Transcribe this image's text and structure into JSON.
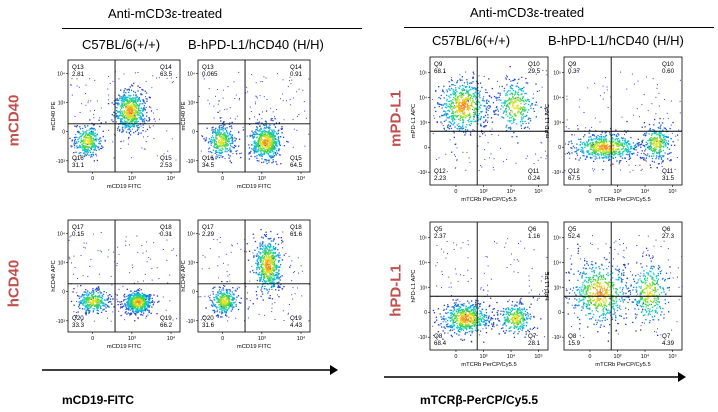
{
  "left_panel": {
    "treatment": "Anti-mCD3ε-treated",
    "col1": "C57BL/6(+/+)",
    "col2": "B-hPD-L1/hCD40 (H/H)",
    "row1_label": "mCD40",
    "row2_label": "hCD40",
    "x_title": "mCD19-FITC"
  },
  "right_panel": {
    "treatment": "Anti-mCD3ε-treated",
    "col1": "C57BL/6(+/+)",
    "col2": "B-hPD-L1/hCD40 (H/H)",
    "row1_label": "mPD-L1",
    "row2_label": "hPD-L1",
    "x_title": "mTCRβ-PerCP/Cy5.5"
  },
  "chart_data": [
    {
      "type": "scatter",
      "panel": "left",
      "row": "mCD40",
      "genotype": "C57BL/6(+/+)",
      "xlabel": "mCD19 FITC",
      "ylabel": "mCD40 PE",
      "quadrants": [
        {
          "name": "Q13",
          "value": "2.81"
        },
        {
          "name": "Q14",
          "value": "63.5"
        },
        {
          "name": "Q16",
          "value": "31.1"
        },
        {
          "name": "Q15",
          "value": "2.53"
        }
      ],
      "x_ticks": [
        "0",
        "10³",
        "10⁴"
      ],
      "y_ticks": [
        "10⁴",
        "10³",
        "0",
        "-10³"
      ],
      "populations": [
        {
          "x": 0.17,
          "y": 0.28,
          "sx": 0.06,
          "sy": 0.07,
          "w": 0.35
        },
        {
          "x": 0.55,
          "y": 0.55,
          "sx": 0.07,
          "sy": 0.09,
          "w": 0.65
        }
      ]
    },
    {
      "type": "scatter",
      "panel": "left",
      "row": "mCD40",
      "genotype": "B-hPD-L1/hCD40 (H/H)",
      "xlabel": "mCD19 FITC",
      "ylabel": "mCD40 PE",
      "quadrants": [
        {
          "name": "Q13",
          "value": "0.065"
        },
        {
          "name": "Q14",
          "value": "0.91"
        },
        {
          "name": "Q16",
          "value": "34.5"
        },
        {
          "name": "Q15",
          "value": "64.5"
        }
      ],
      "x_ticks": [
        "0",
        "10³",
        "10⁴"
      ],
      "y_ticks": [
        "10⁴",
        "10³",
        "0",
        "-10³"
      ],
      "populations": [
        {
          "x": 0.2,
          "y": 0.28,
          "sx": 0.06,
          "sy": 0.07,
          "w": 0.35
        },
        {
          "x": 0.6,
          "y": 0.27,
          "sx": 0.07,
          "sy": 0.08,
          "w": 0.65
        }
      ]
    },
    {
      "type": "scatter",
      "panel": "left",
      "row": "hCD40",
      "genotype": "C57BL/6(+/+)",
      "xlabel": "mCD19 FITC",
      "ylabel": "hCD40 APC",
      "quadrants": [
        {
          "name": "Q17",
          "value": "0.15"
        },
        {
          "name": "Q18",
          "value": "0.31"
        },
        {
          "name": "Q20",
          "value": "33.3"
        },
        {
          "name": "Q19",
          "value": "66.2"
        }
      ],
      "x_ticks": [
        "0",
        "10³",
        "10⁴"
      ],
      "y_ticks": [
        "10⁴",
        "10³",
        "0",
        "-10³"
      ],
      "populations": [
        {
          "x": 0.22,
          "y": 0.28,
          "sx": 0.07,
          "sy": 0.05,
          "w": 0.35
        },
        {
          "x": 0.62,
          "y": 0.27,
          "sx": 0.06,
          "sy": 0.05,
          "w": 0.65
        }
      ]
    },
    {
      "type": "scatter",
      "panel": "left",
      "row": "hCD40",
      "genotype": "B-hPD-L1/hCD40 (H/H)",
      "xlabel": "mCD19 FITC",
      "ylabel": "hCD40 APC",
      "quadrants": [
        {
          "name": "Q17",
          "value": "2.29"
        },
        {
          "name": "Q18",
          "value": "61.6"
        },
        {
          "name": "Q20",
          "value": "31.6"
        },
        {
          "name": "Q19",
          "value": "4.43"
        }
      ],
      "x_ticks": [
        "0",
        "10³",
        "10⁴"
      ],
      "y_ticks": [
        "10⁴",
        "10³",
        "0",
        "-10³"
      ],
      "populations": [
        {
          "x": 0.23,
          "y": 0.28,
          "sx": 0.06,
          "sy": 0.06,
          "w": 0.35
        },
        {
          "x": 0.62,
          "y": 0.6,
          "sx": 0.06,
          "sy": 0.12,
          "w": 0.65
        }
      ]
    },
    {
      "type": "scatter",
      "panel": "right",
      "row": "mPD-L1",
      "genotype": "C57BL/6(+/+)",
      "xlabel": "mTCRb PerCP/Cy5.5",
      "ylabel": "mPD-L1 APC",
      "quadrants": [
        {
          "name": "Q9",
          "value": "68.1"
        },
        {
          "name": "Q10",
          "value": "29.5"
        },
        {
          "name": "Q12",
          "value": "2.23"
        },
        {
          "name": "Q11",
          "value": "0.24"
        }
      ],
      "x_ticks": [
        "0",
        "10³",
        "10⁴",
        "10⁵"
      ],
      "y_ticks": [
        "10⁵",
        "10⁴",
        "10³",
        "0",
        "-10³"
      ],
      "populations": [
        {
          "x": 0.28,
          "y": 0.62,
          "sx": 0.1,
          "sy": 0.1,
          "w": 0.68
        },
        {
          "x": 0.72,
          "y": 0.62,
          "sx": 0.08,
          "sy": 0.1,
          "w": 0.32
        }
      ]
    },
    {
      "type": "scatter",
      "panel": "right",
      "row": "mPD-L1",
      "genotype": "B-hPD-L1/hCD40 (H/H)",
      "xlabel": "mTCRb PerCP/Cy5.5",
      "ylabel": "mPD-L1 APC",
      "quadrants": [
        {
          "name": "Q9",
          "value": "0.37"
        },
        {
          "name": "Q10",
          "value": "0.60"
        },
        {
          "name": "Q12",
          "value": "67.5"
        },
        {
          "name": "Q11",
          "value": "31.5"
        }
      ],
      "x_ticks": [
        "0",
        "10³",
        "10⁴",
        "10⁵"
      ],
      "y_ticks": [
        "10⁵",
        "10⁴",
        "10³",
        "0",
        "-10³"
      ],
      "populations": [
        {
          "x": 0.35,
          "y": 0.3,
          "sx": 0.14,
          "sy": 0.05,
          "w": 0.68
        },
        {
          "x": 0.78,
          "y": 0.33,
          "sx": 0.06,
          "sy": 0.07,
          "w": 0.32
        }
      ]
    },
    {
      "type": "scatter",
      "panel": "right",
      "row": "hPD-L1",
      "genotype": "C57BL/6(+/+)",
      "xlabel": "mTCRb PerCP/Cy5.5",
      "ylabel": "hPD-L1 APC",
      "quadrants": [
        {
          "name": "Q5",
          "value": "2.37"
        },
        {
          "name": "Q6",
          "value": "1.16"
        },
        {
          "name": "Q8",
          "value": "68.4"
        },
        {
          "name": "Q7",
          "value": "28.1"
        }
      ],
      "x_ticks": [
        "0",
        "10³",
        "10⁴",
        "10⁵"
      ],
      "y_ticks": [
        "10⁵",
        "10⁴",
        "10³",
        "0",
        "-10³"
      ],
      "populations": [
        {
          "x": 0.3,
          "y": 0.25,
          "sx": 0.1,
          "sy": 0.06,
          "w": 0.68
        },
        {
          "x": 0.72,
          "y": 0.25,
          "sx": 0.07,
          "sy": 0.06,
          "w": 0.32
        }
      ]
    },
    {
      "type": "scatter",
      "panel": "right",
      "row": "hPD-L1",
      "genotype": "B-hPD-L1/hCD40 (H/H)",
      "xlabel": "mTCRb PerCP/Cy5.5",
      "ylabel": "hPD-L1 PE",
      "quadrants": [
        {
          "name": "Q5",
          "value": "52.4"
        },
        {
          "name": "Q6",
          "value": "27.3"
        },
        {
          "name": "Q8",
          "value": "15.9"
        },
        {
          "name": "Q7",
          "value": "4.39"
        }
      ],
      "x_ticks": [
        "0",
        "10³",
        "10⁴",
        "10⁵"
      ],
      "y_ticks": [
        "10⁵",
        "10⁴",
        "10³",
        "0",
        "-10³"
      ],
      "populations": [
        {
          "x": 0.3,
          "y": 0.45,
          "sx": 0.12,
          "sy": 0.12,
          "w": 0.66
        },
        {
          "x": 0.72,
          "y": 0.45,
          "sx": 0.08,
          "sy": 0.12,
          "w": 0.34
        }
      ]
    }
  ]
}
